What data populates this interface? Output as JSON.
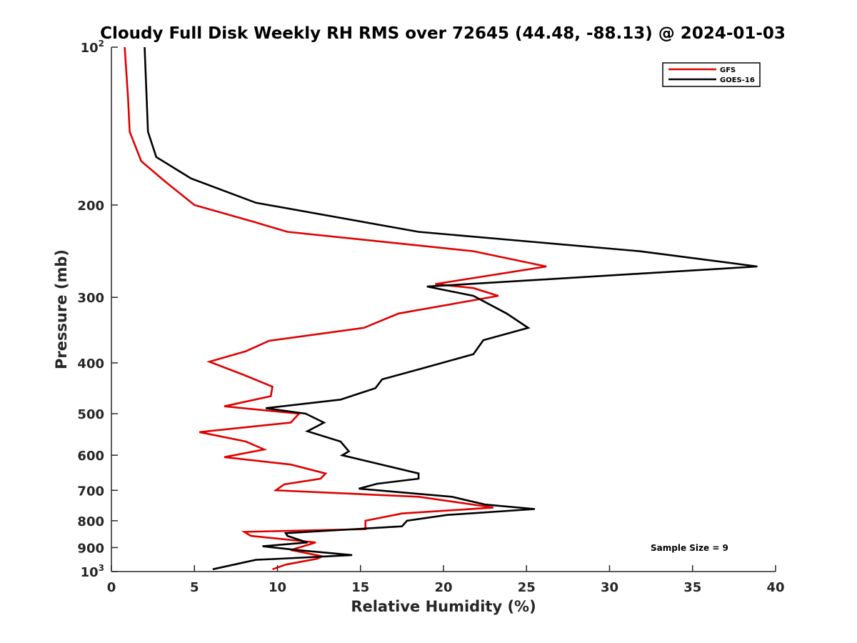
{
  "chart_data": {
    "type": "line",
    "title": "Cloudy Full Disk Weekly RH RMS over 72645 (44.48, -88.13) @ 2024-01-03",
    "xlabel": "Relative Humidity (%)",
    "ylabel": "Pressure (mb)",
    "xlim": [
      0,
      40
    ],
    "ylim": [
      100,
      1000
    ],
    "y_scale": "log",
    "y_reversed": true,
    "x_ticks": [
      0,
      5,
      10,
      15,
      20,
      25,
      30,
      35,
      40
    ],
    "y_ticks": [
      {
        "value": 100,
        "base": "10",
        "exp": "2"
      },
      {
        "value": 200,
        "label": "200"
      },
      {
        "value": 300,
        "label": "300"
      },
      {
        "value": 400,
        "label": "400"
      },
      {
        "value": 500,
        "label": "500"
      },
      {
        "value": 600,
        "label": "600"
      },
      {
        "value": 700,
        "label": "700"
      },
      {
        "value": 800,
        "label": "800"
      },
      {
        "value": 900,
        "label": "900"
      },
      {
        "value": 1000,
        "base": "10",
        "exp": "3"
      }
    ],
    "grid": false,
    "legend_position": "top-right",
    "annotation": "Sample Size = 9",
    "series": [
      {
        "name": "GFS",
        "color": "#e00000",
        "points": [
          [
            0.8,
            100
          ],
          [
            1.0,
            125
          ],
          [
            1.1,
            145
          ],
          [
            1.8,
            165
          ],
          [
            3.2,
            180
          ],
          [
            5.0,
            200
          ],
          [
            8.5,
            215
          ],
          [
            10.6,
            225
          ],
          [
            21.8,
            245
          ],
          [
            26.2,
            262
          ],
          [
            19.5,
            283
          ],
          [
            21.8,
            288
          ],
          [
            23.3,
            298
          ],
          [
            17.3,
            322
          ],
          [
            15.2,
            343
          ],
          [
            9.5,
            363
          ],
          [
            8.1,
            380
          ],
          [
            5.9,
            398
          ],
          [
            8.0,
            422
          ],
          [
            9.7,
            444
          ],
          [
            9.6,
            463
          ],
          [
            6.8,
            484
          ],
          [
            11.3,
            500
          ],
          [
            10.8,
            520
          ],
          [
            5.3,
            542
          ],
          [
            8.1,
            565
          ],
          [
            9.2,
            585
          ],
          [
            6.8,
            605
          ],
          [
            10.8,
            625
          ],
          [
            12.9,
            650
          ],
          [
            12.6,
            665
          ],
          [
            10.4,
            682
          ],
          [
            9.9,
            700
          ],
          [
            18.5,
            720
          ],
          [
            23.0,
            755
          ],
          [
            17.5,
            775
          ],
          [
            15.3,
            800
          ],
          [
            15.3,
            830
          ],
          [
            8.0,
            840
          ],
          [
            8.4,
            855
          ],
          [
            12.3,
            880
          ],
          [
            10.8,
            910
          ],
          [
            12.7,
            935
          ],
          [
            12.4,
            945
          ],
          [
            10.5,
            970
          ],
          [
            9.7,
            990
          ]
        ]
      },
      {
        "name": "GOES-16",
        "color": "#000000",
        "points": [
          [
            2.0,
            100
          ],
          [
            2.1,
            120
          ],
          [
            2.2,
            145
          ],
          [
            2.7,
            162
          ],
          [
            4.8,
            178
          ],
          [
            8.7,
            198
          ],
          [
            18.5,
            225
          ],
          [
            31.8,
            245
          ],
          [
            38.9,
            262
          ],
          [
            21.5,
            283
          ],
          [
            19.0,
            286
          ],
          [
            21.8,
            298
          ],
          [
            23.8,
            322
          ],
          [
            25.1,
            343
          ],
          [
            22.4,
            362
          ],
          [
            21.8,
            385
          ],
          [
            18.7,
            410
          ],
          [
            16.3,
            430
          ],
          [
            15.9,
            447
          ],
          [
            13.8,
            470
          ],
          [
            9.3,
            488
          ],
          [
            11.7,
            500
          ],
          [
            12.8,
            520
          ],
          [
            11.8,
            540
          ],
          [
            13.8,
            565
          ],
          [
            14.3,
            590
          ],
          [
            13.9,
            600
          ],
          [
            18.5,
            650
          ],
          [
            18.5,
            665
          ],
          [
            16.0,
            680
          ],
          [
            14.9,
            695
          ],
          [
            20.5,
            720
          ],
          [
            22.5,
            745
          ],
          [
            25.5,
            760
          ],
          [
            20.2,
            780
          ],
          [
            17.8,
            800
          ],
          [
            17.5,
            820
          ],
          [
            10.5,
            845
          ],
          [
            10.6,
            855
          ],
          [
            11.8,
            880
          ],
          [
            9.1,
            895
          ],
          [
            11.2,
            910
          ],
          [
            14.5,
            930
          ],
          [
            10.2,
            945
          ],
          [
            8.7,
            950
          ],
          [
            6.1,
            990
          ]
        ]
      }
    ]
  }
}
